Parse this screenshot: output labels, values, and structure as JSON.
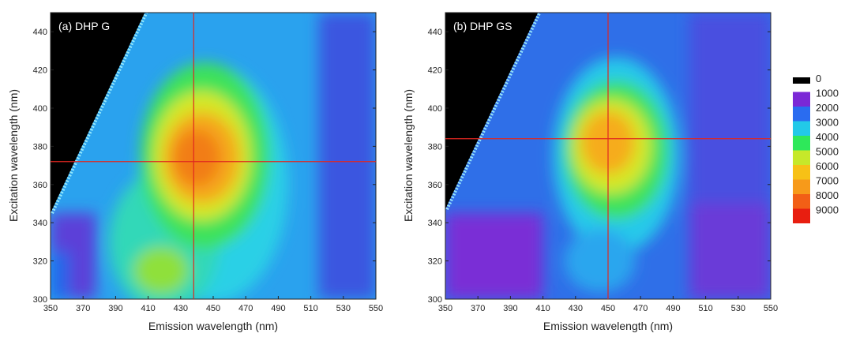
{
  "chart_data": [
    {
      "type": "heatmap",
      "panel_label": "(a) DHP G",
      "xlabel": "Emission wavelength (nm)",
      "ylabel": "Excitation wavelength (nm)",
      "xlim": [
        350,
        550
      ],
      "ylim": [
        300,
        450
      ],
      "x_ticks": [
        "350",
        "370",
        "390",
        "410",
        "430",
        "450",
        "470",
        "490",
        "510",
        "530",
        "550"
      ],
      "y_ticks": [
        "300",
        "320",
        "340",
        "360",
        "380",
        "400",
        "420",
        "440"
      ],
      "peak": {
        "x": 438,
        "y": 372,
        "value": 6000
      },
      "crosshair": {
        "x": 438,
        "y": 372
      },
      "crosshair_color": "#e0271f"
    },
    {
      "type": "heatmap",
      "panel_label": "(b) DHP GS",
      "xlabel": "Emission wavelength (nm)",
      "ylabel": "Excitation wavelength (nm)",
      "xlim": [
        350,
        550
      ],
      "ylim": [
        300,
        450
      ],
      "x_ticks": [
        "350",
        "370",
        "390",
        "410",
        "430",
        "450",
        "470",
        "490",
        "510",
        "530",
        "550"
      ],
      "y_ticks": [
        "300",
        "320",
        "340",
        "360",
        "380",
        "400",
        "420",
        "440"
      ],
      "peak": {
        "x": 450,
        "y": 384,
        "value": 5200
      },
      "crosshair": {
        "x": 450,
        "y": 384
      },
      "crosshair_color": "#e0271f"
    }
  ],
  "colorbar": {
    "labels": [
      "0",
      "1000",
      "2000",
      "3000",
      "4000",
      "5000",
      "6000",
      "7000",
      "8000",
      "9000"
    ],
    "colors": [
      "#000000",
      "#7b28d6",
      "#2a6cf0",
      "#22c9e8",
      "#2ee85a",
      "#c6e82a",
      "#f7c116",
      "#f79a1a",
      "#f25f16",
      "#e81e10"
    ]
  }
}
